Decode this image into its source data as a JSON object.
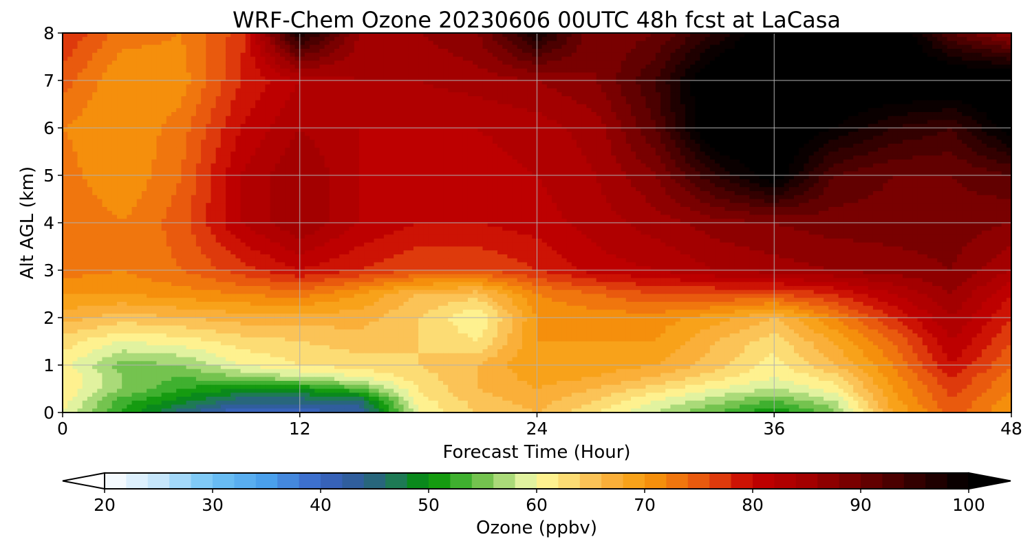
{
  "chart_data": {
    "type": "heatmap",
    "title": "WRF-Chem Ozone  20230606 00UTC 48h fcst at LaCasa",
    "xlabel": "Forecast Time (Hour)",
    "ylabel": "Alt AGL (km)",
    "xlim": [
      0,
      48
    ],
    "ylim": [
      0,
      8
    ],
    "xticks": [
      0,
      12,
      24,
      36,
      48
    ],
    "yticks": [
      0,
      1,
      2,
      3,
      4,
      5,
      6,
      7,
      8
    ],
    "grid": true,
    "x_hours": [
      0,
      3,
      6,
      9,
      12,
      15,
      18,
      21,
      24,
      27,
      30,
      33,
      36,
      39,
      42,
      45,
      48
    ],
    "alt_km": [
      0,
      0.25,
      0.5,
      0.75,
      1.0,
      1.5,
      2.0,
      2.5,
      3.0,
      4.0,
      5.0,
      6.0,
      7.0,
      8.0
    ],
    "ozone_ppbv": [
      [
        60,
        52,
        45,
        40,
        41,
        42,
        60,
        64,
        66,
        62,
        58,
        54,
        50,
        55,
        68,
        75,
        70
      ],
      [
        61,
        53,
        49,
        45,
        45,
        46,
        61,
        65,
        67,
        64,
        60,
        57,
        54,
        58,
        69,
        76,
        71
      ],
      [
        62,
        56,
        52,
        50,
        50,
        54,
        62,
        66,
        68,
        66,
        63,
        60,
        58,
        61,
        70,
        77,
        72
      ],
      [
        62,
        56,
        54,
        56,
        58,
        60,
        63,
        66,
        69,
        68,
        66,
        63,
        60,
        63,
        71,
        78,
        73
      ],
      [
        61,
        55,
        56,
        60,
        62,
        63,
        64,
        66,
        70,
        69,
        68,
        65,
        61,
        66,
        72,
        80,
        74
      ],
      [
        63,
        60,
        61,
        63,
        64,
        65,
        64,
        62,
        70,
        70,
        70,
        66,
        63,
        68,
        74,
        82,
        76
      ],
      [
        67,
        65,
        66,
        67,
        67,
        67,
        64,
        60,
        70,
        71,
        71,
        69,
        66,
        72,
        78,
        84,
        78
      ],
      [
        70,
        70,
        71,
        72,
        73,
        70,
        66,
        65,
        72,
        74,
        76,
        76,
        76,
        78,
        82,
        86,
        80
      ],
      [
        73,
        72,
        74,
        77,
        80,
        78,
        76,
        76,
        78,
        81,
        82,
        84,
        85,
        86,
        87,
        88,
        84
      ],
      [
        74,
        72,
        75,
        82,
        86,
        82,
        80,
        80,
        81,
        83,
        85,
        87,
        88,
        89,
        89,
        89,
        88
      ],
      [
        73,
        70,
        74,
        82,
        86,
        82,
        81,
        81,
        82,
        84,
        88,
        96,
        102,
        92,
        90,
        90,
        92
      ],
      [
        72,
        70,
        73,
        80,
        84,
        82,
        82,
        82,
        83,
        85,
        92,
        104,
        104,
        100,
        96,
        94,
        102
      ],
      [
        75,
        70,
        71,
        78,
        82,
        84,
        84,
        85,
        86,
        88,
        94,
        104,
        104,
        104,
        104,
        104,
        104
      ],
      [
        78,
        73,
        72,
        77,
        98,
        86,
        86,
        88,
        98,
        88,
        90,
        96,
        104,
        104,
        104,
        92,
        86
      ]
    ],
    "colorbar": {
      "label": "Ozone  (ppbv)",
      "min": 20,
      "max": 100,
      "ticks": [
        20,
        30,
        40,
        50,
        60,
        70,
        80,
        90,
        100
      ],
      "extend": "both",
      "stops": [
        {
          "v": 20,
          "c": "#ffffff"
        },
        {
          "v": 25,
          "c": "#c6e6fb"
        },
        {
          "v": 30,
          "c": "#6fc3f5"
        },
        {
          "v": 35,
          "c": "#4aa0ec"
        },
        {
          "v": 40,
          "c": "#3a64c6"
        },
        {
          "v": 44,
          "c": "#2d5c8f"
        },
        {
          "v": 47,
          "c": "#1e7a55"
        },
        {
          "v": 50,
          "c": "#009100"
        },
        {
          "v": 53,
          "c": "#3fb02f"
        },
        {
          "v": 56,
          "c": "#8fcc5f"
        },
        {
          "v": 58.5,
          "c": "#d2eea0"
        },
        {
          "v": 60,
          "c": "#fffb9c"
        },
        {
          "v": 63,
          "c": "#fcdc74"
        },
        {
          "v": 66,
          "c": "#fbb648"
        },
        {
          "v": 70,
          "c": "#f79b0b"
        },
        {
          "v": 74,
          "c": "#ee6a0f"
        },
        {
          "v": 77,
          "c": "#de3a0c"
        },
        {
          "v": 80,
          "c": "#c40000"
        },
        {
          "v": 85,
          "c": "#a30000"
        },
        {
          "v": 90,
          "c": "#6e0000"
        },
        {
          "v": 95,
          "c": "#330000"
        },
        {
          "v": 100,
          "c": "#000000"
        }
      ]
    }
  }
}
